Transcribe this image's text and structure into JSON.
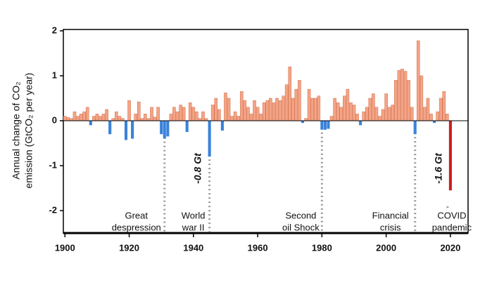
{
  "chart_data": {
    "type": "bar",
    "ylabel": [
      "Annual change of CO₂",
      "emission (GtCO₂ per year)"
    ],
    "x": [
      1900,
      1901,
      1902,
      1903,
      1904,
      1905,
      1906,
      1907,
      1908,
      1909,
      1910,
      1911,
      1912,
      1913,
      1914,
      1915,
      1916,
      1917,
      1918,
      1919,
      1920,
      1921,
      1922,
      1923,
      1924,
      1925,
      1926,
      1927,
      1928,
      1929,
      1930,
      1931,
      1932,
      1933,
      1934,
      1935,
      1936,
      1937,
      1938,
      1939,
      1940,
      1941,
      1942,
      1943,
      1944,
      1945,
      1946,
      1947,
      1948,
      1949,
      1950,
      1951,
      1952,
      1953,
      1954,
      1955,
      1956,
      1957,
      1958,
      1959,
      1960,
      1961,
      1962,
      1963,
      1964,
      1965,
      1966,
      1967,
      1968,
      1969,
      1970,
      1971,
      1972,
      1973,
      1974,
      1975,
      1976,
      1977,
      1978,
      1979,
      1980,
      1981,
      1982,
      1983,
      1984,
      1985,
      1986,
      1987,
      1988,
      1989,
      1990,
      1991,
      1992,
      1993,
      1994,
      1995,
      1996,
      1997,
      1998,
      1999,
      2000,
      2001,
      2002,
      2003,
      2004,
      2005,
      2006,
      2007,
      2008,
      2009,
      2010,
      2011,
      2012,
      2013,
      2014,
      2015,
      2016,
      2017,
      2018,
      2019,
      2020
    ],
    "values": [
      0.1,
      0.07,
      0.05,
      0.2,
      0.1,
      0.15,
      0.2,
      0.3,
      -0.1,
      0.1,
      0.15,
      0.1,
      0.15,
      0.25,
      -0.3,
      0.05,
      0.2,
      0.1,
      0.05,
      -0.43,
      0.45,
      -0.4,
      0.15,
      0.42,
      0.05,
      0.15,
      0.05,
      0.3,
      0.08,
      0.3,
      -0.3,
      -0.4,
      -0.35,
      0.15,
      0.3,
      0.2,
      0.35,
      0.3,
      -0.25,
      0.4,
      0.3,
      0.2,
      0.05,
      0.2,
      0.05,
      -0.8,
      0.35,
      0.5,
      0.25,
      -0.22,
      0.62,
      0.5,
      0.1,
      0.2,
      0.1,
      0.65,
      0.45,
      0.3,
      0.15,
      0.45,
      0.3,
      0.15,
      0.4,
      0.45,
      0.5,
      0.4,
      0.5,
      0.45,
      0.55,
      0.8,
      1.2,
      0.5,
      0.7,
      0.9,
      -0.05,
      0.05,
      0.7,
      0.5,
      0.5,
      0.55,
      -0.2,
      -0.2,
      -0.18,
      0.1,
      0.5,
      0.4,
      0.3,
      0.55,
      0.7,
      0.4,
      0.35,
      0.15,
      -0.1,
      0.2,
      0.3,
      0.5,
      0.6,
      0.3,
      0.1,
      0.25,
      0.6,
      0.3,
      0.35,
      0.9,
      1.12,
      1.15,
      1.1,
      0.9,
      0.3,
      -0.3,
      1.78,
      1.0,
      0.3,
      0.5,
      0.15,
      -0.05,
      0.2,
      0.5,
      0.65,
      0.15,
      -1.55
    ],
    "color": "#f4a486",
    "negative_color": "#3b82d9",
    "highlight": {
      "x": 2020,
      "color": "#cc1f1f"
    },
    "xlim": [
      1899.5,
      2025.5
    ],
    "xticks": [
      1900,
      1920,
      1940,
      1960,
      1980,
      2000,
      2020
    ],
    "ylim": [
      -2.5,
      2.03
    ],
    "yticks": [
      -2,
      -1,
      0,
      1,
      2
    ],
    "events": [
      {
        "x": 1931,
        "lines": [
          "Great",
          "despression"
        ]
      },
      {
        "x": 1945,
        "lines": [
          "World",
          "war II"
        ]
      },
      {
        "x": 1980,
        "lines": [
          "Second",
          "oil Shock"
        ]
      },
      {
        "x": 2009,
        "lines": [
          "Financial",
          "crisis"
        ]
      },
      {
        "x": 2020,
        "lines": [
          "COVID",
          "pandemic"
        ],
        "color": "#cc1f1f"
      }
    ],
    "annotations": [
      {
        "text": "-0.8 Gt",
        "x": 1945
      },
      {
        "text": "-1.6 Gt",
        "x": 2020,
        "color": "#cc1f1f"
      }
    ]
  }
}
